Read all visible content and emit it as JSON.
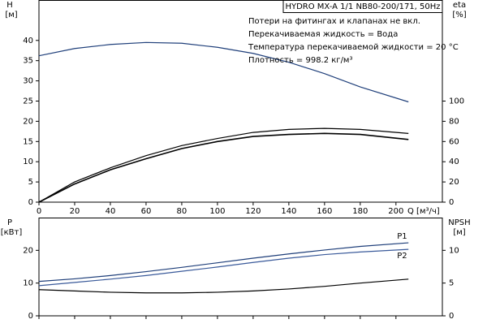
{
  "chart_data": [
    {
      "type": "line",
      "title": "HYDRO MX-A 1/1 NB80-200/171, 50Hz",
      "notes": [
        "Потери на фитингах и клапанах не вкл.",
        "Перекачиваемая жидкость = Вода",
        "Температура перекачиваемой жидкости = 20 °C",
        "Плотность = 998.2 кг/м³"
      ],
      "ylabel": "H",
      "yunit": "[м]",
      "y2label": "eta",
      "y2unit": "[%]",
      "xlabel": "Q [м³/ч]",
      "x": [
        0,
        20,
        40,
        60,
        80,
        100,
        120,
        140,
        160,
        180,
        207
      ],
      "xlim": [
        0,
        226
      ],
      "xticks": [
        0,
        20,
        40,
        60,
        80,
        100,
        120,
        140,
        160,
        180,
        200
      ],
      "ylim": [
        0,
        50
      ],
      "yticks": [
        0,
        5,
        10,
        15,
        20,
        25,
        30,
        35,
        40
      ],
      "y2lim": [
        0,
        200
      ],
      "y2ticks": [
        0,
        20,
        40,
        60,
        80,
        100
      ],
      "series": [
        {
          "color": "#1f3f7a",
          "values": [
            36.2,
            38,
            39,
            39.5,
            39.3,
            38.3,
            36.8,
            34.6,
            31.8,
            28.5,
            24.8
          ]
        },
        {
          "color": "#000000",
          "axis": "y2",
          "values": [
            0,
            20,
            34,
            46,
            56,
            63,
            69,
            72,
            73,
            72,
            68
          ]
        },
        {
          "color": "#000000",
          "axis": "y2",
          "values": [
            0,
            18,
            32,
            43,
            53,
            60,
            65,
            67,
            68,
            67,
            62
          ]
        }
      ]
    },
    {
      "type": "line",
      "ylabel": "P",
      "yunit": "[кВт]",
      "y2label": "NPSH",
      "y2unit": "[м]",
      "x": [
        0,
        20,
        40,
        60,
        80,
        100,
        120,
        140,
        160,
        180,
        207
      ],
      "xlim": [
        0,
        226
      ],
      "xticks": [
        0,
        20,
        40,
        60,
        80,
        100,
        120,
        140,
        160,
        180,
        200
      ],
      "ylim": [
        0,
        30
      ],
      "yticks": [
        0,
        10,
        20
      ],
      "y2lim": [
        0,
        15
      ],
      "y2ticks": [
        0,
        5,
        10
      ],
      "series": [
        {
          "name": "P1",
          "color": "#1f3f7a",
          "values": [
            10.5,
            11.3,
            12.3,
            13.5,
            14.8,
            16.2,
            17.6,
            18.9,
            20.1,
            21.2,
            22.3
          ]
        },
        {
          "name": "P2",
          "color": "#3a5a9a",
          "values": [
            9.2,
            10.2,
            11.2,
            12.3,
            13.6,
            14.9,
            16.3,
            17.6,
            18.7,
            19.5,
            20.3
          ]
        },
        {
          "color": "#000000",
          "axis": "y2",
          "values": [
            4.0,
            3.8,
            3.6,
            3.5,
            3.5,
            3.6,
            3.8,
            4.1,
            4.5,
            5.0,
            5.6
          ]
        }
      ]
    }
  ]
}
